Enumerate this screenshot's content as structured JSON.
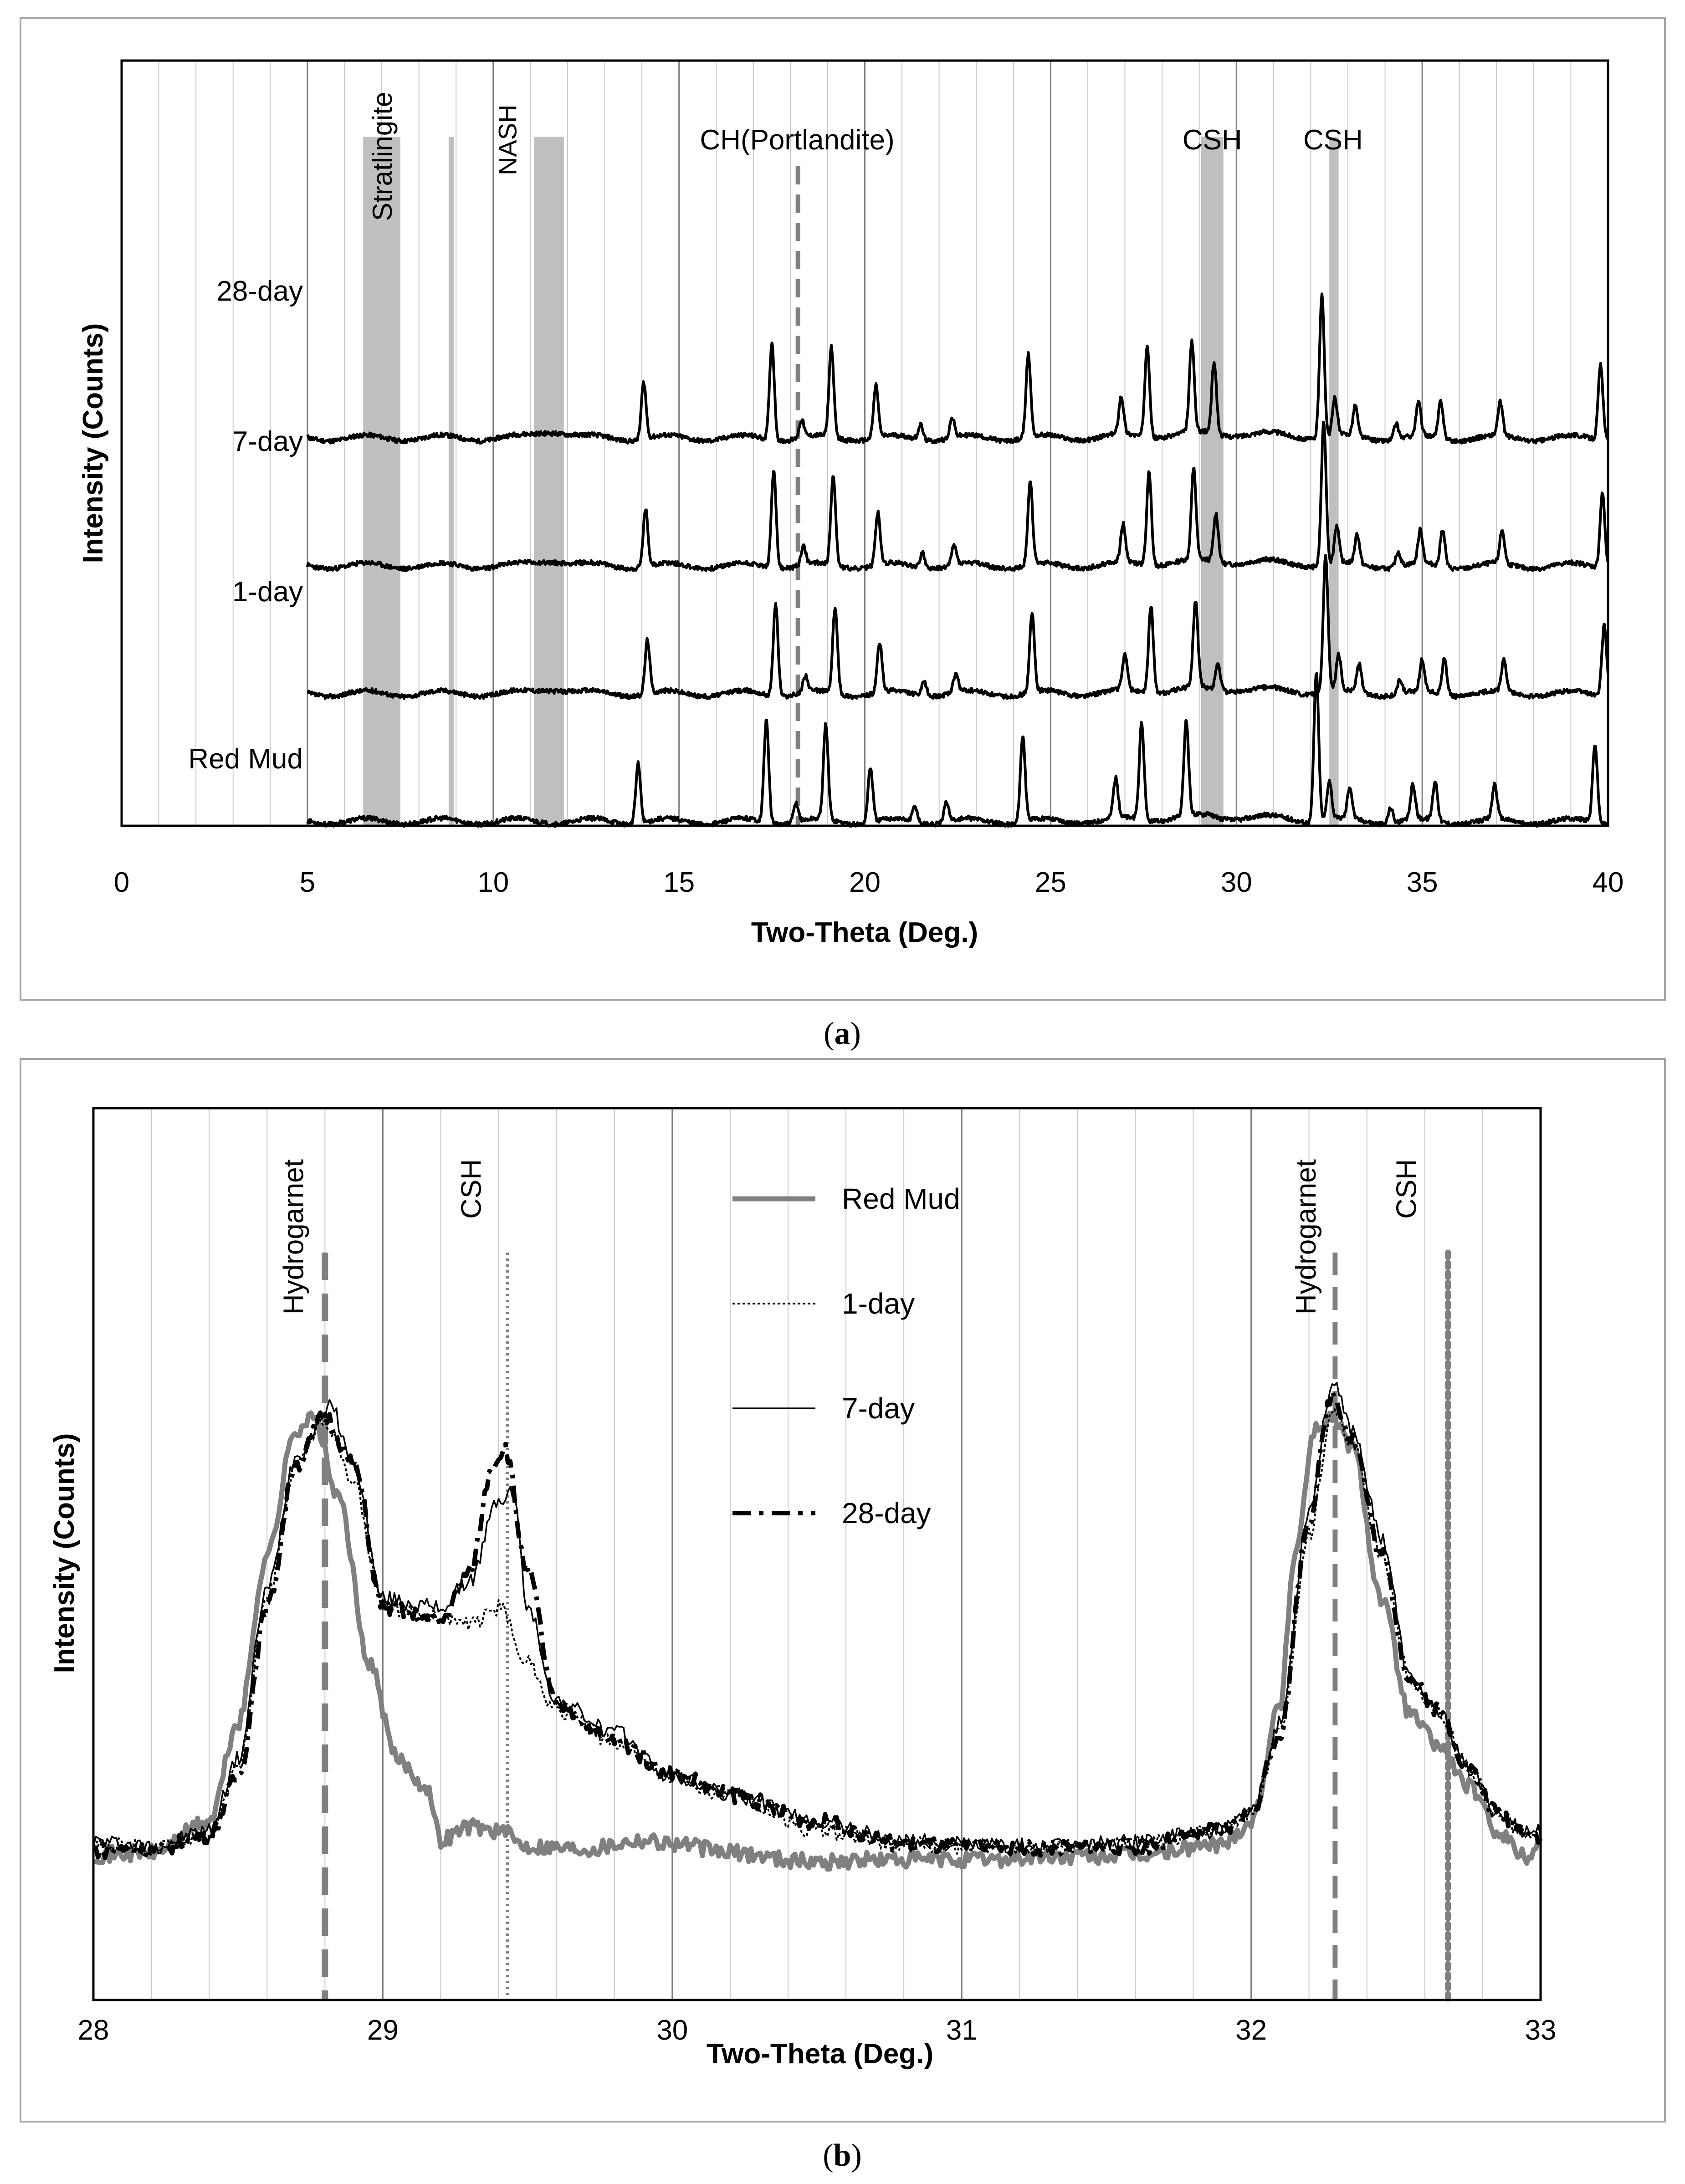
{
  "chart_data": [
    {
      "id": "a",
      "type": "line",
      "caption_letter": "a",
      "xlabel": "Two-Theta (Deg.)",
      "ylabel": "Intensity (Counts)",
      "xlim": [
        0,
        40
      ],
      "xticks": [
        0,
        5,
        10,
        15,
        20,
        25,
        30,
        35,
        40
      ],
      "minor_grid_step": 1,
      "major_grid_step": 5,
      "series": [
        {
          "name": "28-day",
          "baseline": 3.4,
          "noise_seed": 11,
          "sharp": 0.0,
          "peak_scale": 1.0,
          "hump_scale": 1.0
        },
        {
          "name": "7-day",
          "baseline": 2.55,
          "noise_seed": 23,
          "sharp": 0.05,
          "peak_scale": 1.0,
          "hump_scale": 0.8
        },
        {
          "name": "1-day",
          "baseline": 1.7,
          "noise_seed": 37,
          "sharp": 0.1,
          "peak_scale": 0.95,
          "hump_scale": 0.7
        },
        {
          "name": "Red Mud",
          "baseline": 0.85,
          "noise_seed": 53,
          "sharp": -0.15,
          "peak_scale": 1.05,
          "hump_scale": 0.0
        }
      ],
      "peaks": [
        [
          14.05,
          0.38
        ],
        [
          17.5,
          0.65
        ],
        [
          18.3,
          0.12
        ],
        [
          19.1,
          0.6
        ],
        [
          20.3,
          0.35
        ],
        [
          21.5,
          0.1
        ],
        [
          22.35,
          0.13
        ],
        [
          24.4,
          0.55
        ],
        [
          26.9,
          0.25
        ],
        [
          27.6,
          0.62
        ],
        [
          28.8,
          0.6
        ],
        [
          29.4,
          0.4
        ],
        [
          32.3,
          0.95
        ],
        [
          32.65,
          0.25
        ],
        [
          33.2,
          0.2
        ],
        [
          34.3,
          0.1
        ],
        [
          34.9,
          0.22
        ],
        [
          35.5,
          0.25
        ],
        [
          37.1,
          0.22
        ],
        [
          39.8,
          0.5
        ]
      ],
      "shaded_bands": [
        {
          "label": "Stratlingite",
          "x0": 6.5,
          "x1": 7.5
        },
        {
          "label": "",
          "x0": 8.8,
          "x1": 8.95
        },
        {
          "label": "NASH",
          "x0": 11.1,
          "x1": 11.9
        },
        {
          "label": "CSH",
          "x0": 29.05,
          "x1": 29.65
        },
        {
          "label": "CSH",
          "x0": 32.5,
          "x1": 32.75
        }
      ],
      "dashed_line": {
        "label": "CH(Portlandite)",
        "x": 18.2
      },
      "annotations": [
        "Stratlingite",
        "NASH",
        "CH(Portlandite)",
        "CSH",
        "CSH"
      ]
    },
    {
      "id": "b",
      "type": "line",
      "caption_letter": "b",
      "xlabel": "Two-Theta (Deg.)",
      "ylabel": "Intensity (Counts)",
      "xlim": [
        28,
        33
      ],
      "xticks": [
        28,
        29,
        30,
        31,
        32,
        33
      ],
      "minor_grid_step": 0.2,
      "ylim": [
        0,
        1
      ],
      "series": [
        {
          "name": "Red Mud",
          "style": "solid-gray-thick",
          "points": [
            [
              28.0,
              0.163
            ],
            [
              28.2,
              0.165
            ],
            [
              28.4,
              0.2
            ],
            [
              28.5,
              0.31
            ],
            [
              28.6,
              0.5
            ],
            [
              28.7,
              0.64
            ],
            [
              28.76,
              0.653
            ],
            [
              28.85,
              0.56
            ],
            [
              28.95,
              0.38
            ],
            [
              29.05,
              0.27
            ],
            [
              29.15,
              0.24
            ],
            [
              29.2,
              0.18
            ],
            [
              29.3,
              0.195
            ],
            [
              29.4,
              0.19
            ],
            [
              29.5,
              0.173
            ],
            [
              29.7,
              0.17
            ],
            [
              29.9,
              0.18
            ],
            [
              30.0,
              0.176
            ],
            [
              30.2,
              0.165
            ],
            [
              30.5,
              0.155
            ],
            [
              30.7,
              0.157
            ],
            [
              31.0,
              0.157
            ],
            [
              31.3,
              0.16
            ],
            [
              31.6,
              0.162
            ],
            [
              31.9,
              0.175
            ],
            [
              32.0,
              0.2
            ],
            [
              32.1,
              0.33
            ],
            [
              32.15,
              0.5
            ],
            [
              32.22,
              0.64
            ],
            [
              32.28,
              0.653
            ],
            [
              32.35,
              0.62
            ],
            [
              32.45,
              0.45
            ],
            [
              32.55,
              0.32
            ],
            [
              32.65,
              0.285
            ],
            [
              32.75,
              0.24
            ],
            [
              32.85,
              0.19
            ],
            [
              32.95,
              0.16
            ],
            [
              33.0,
              0.18
            ]
          ]
        },
        {
          "name": "1-day",
          "style": "dotted-thin",
          "points": [
            [
              28.0,
              0.175
            ],
            [
              28.2,
              0.17
            ],
            [
              28.4,
              0.185
            ],
            [
              28.5,
              0.26
            ],
            [
              28.6,
              0.45
            ],
            [
              28.7,
              0.6
            ],
            [
              28.8,
              0.65
            ],
            [
              28.9,
              0.58
            ],
            [
              29.0,
              0.44
            ],
            [
              29.2,
              0.43
            ],
            [
              29.3,
              0.42
            ],
            [
              29.4,
              0.44
            ],
            [
              29.5,
              0.38
            ],
            [
              29.6,
              0.325
            ],
            [
              29.8,
              0.29
            ],
            [
              30.0,
              0.25
            ],
            [
              30.2,
              0.23
            ],
            [
              30.5,
              0.19
            ],
            [
              30.8,
              0.175
            ],
            [
              31.0,
              0.172
            ],
            [
              31.3,
              0.172
            ],
            [
              31.6,
              0.175
            ],
            [
              31.9,
              0.19
            ],
            [
              32.0,
              0.21
            ],
            [
              32.1,
              0.3
            ],
            [
              32.2,
              0.52
            ],
            [
              32.28,
              0.66
            ],
            [
              32.35,
              0.62
            ],
            [
              32.45,
              0.5
            ],
            [
              32.55,
              0.36
            ],
            [
              32.65,
              0.32
            ],
            [
              32.75,
              0.26
            ],
            [
              32.85,
              0.21
            ],
            [
              32.95,
              0.185
            ],
            [
              33.0,
              0.19
            ]
          ]
        },
        {
          "name": "7-day",
          "style": "solid-black-thin",
          "points": [
            [
              28.0,
              0.178
            ],
            [
              28.2,
              0.172
            ],
            [
              28.4,
              0.19
            ],
            [
              28.5,
              0.27
            ],
            [
              28.6,
              0.46
            ],
            [
              28.7,
              0.61
            ],
            [
              28.82,
              0.665
            ],
            [
              28.9,
              0.6
            ],
            [
              29.0,
              0.45
            ],
            [
              29.2,
              0.44
            ],
            [
              29.3,
              0.47
            ],
            [
              29.4,
              0.56
            ],
            [
              29.45,
              0.57
            ],
            [
              29.5,
              0.44
            ],
            [
              29.6,
              0.335
            ],
            [
              29.8,
              0.3
            ],
            [
              30.0,
              0.25
            ],
            [
              30.2,
              0.23
            ],
            [
              30.5,
              0.2
            ],
            [
              30.8,
              0.178
            ],
            [
              31.0,
              0.175
            ],
            [
              31.3,
              0.172
            ],
            [
              31.6,
              0.178
            ],
            [
              31.9,
              0.19
            ],
            [
              32.0,
              0.21
            ],
            [
              32.1,
              0.31
            ],
            [
              32.2,
              0.55
            ],
            [
              32.28,
              0.69
            ],
            [
              32.35,
              0.64
            ],
            [
              32.45,
              0.52
            ],
            [
              32.55,
              0.36
            ],
            [
              32.65,
              0.32
            ],
            [
              32.75,
              0.26
            ],
            [
              32.85,
              0.21
            ],
            [
              32.95,
              0.19
            ],
            [
              33.0,
              0.19
            ]
          ]
        },
        {
          "name": "28-day",
          "style": "dash-dot-thick",
          "points": [
            [
              28.0,
              0.168
            ],
            [
              28.2,
              0.168
            ],
            [
              28.4,
              0.185
            ],
            [
              28.5,
              0.25
            ],
            [
              28.6,
              0.44
            ],
            [
              28.7,
              0.6
            ],
            [
              28.8,
              0.655
            ],
            [
              28.9,
              0.6
            ],
            [
              29.0,
              0.44
            ],
            [
              29.2,
              0.425
            ],
            [
              29.3,
              0.48
            ],
            [
              29.38,
              0.6
            ],
            [
              29.42,
              0.62
            ],
            [
              29.5,
              0.48
            ],
            [
              29.6,
              0.33
            ],
            [
              29.8,
              0.29
            ],
            [
              30.0,
              0.255
            ],
            [
              30.2,
              0.23
            ],
            [
              30.5,
              0.2
            ],
            [
              30.8,
              0.175
            ],
            [
              31.0,
              0.172
            ],
            [
              31.3,
              0.17
            ],
            [
              31.6,
              0.172
            ],
            [
              31.9,
              0.19
            ],
            [
              32.0,
              0.21
            ],
            [
              32.1,
              0.3
            ],
            [
              32.2,
              0.54
            ],
            [
              32.28,
              0.68
            ],
            [
              32.35,
              0.63
            ],
            [
              32.45,
              0.5
            ],
            [
              32.55,
              0.36
            ],
            [
              32.65,
              0.325
            ],
            [
              32.75,
              0.26
            ],
            [
              32.85,
              0.21
            ],
            [
              32.95,
              0.19
            ],
            [
              33.0,
              0.185
            ]
          ]
        }
      ],
      "reference_lines": [
        {
          "label": "Hydrogarnet",
          "x": 28.8,
          "style": "dashed-gray-thick"
        },
        {
          "label": "CSH",
          "x": 29.43,
          "style": "dotted-gray-thin"
        },
        {
          "label": "Hydrogarnet",
          "x": 32.29,
          "style": "dashed-gray"
        },
        {
          "label": "CSH",
          "x": 32.68,
          "style": "dotted-gray-thick"
        }
      ],
      "legend": {
        "placement": "top-center",
        "entries": [
          "Red Mud",
          "1-day",
          "7-day",
          "28-day"
        ]
      }
    }
  ]
}
